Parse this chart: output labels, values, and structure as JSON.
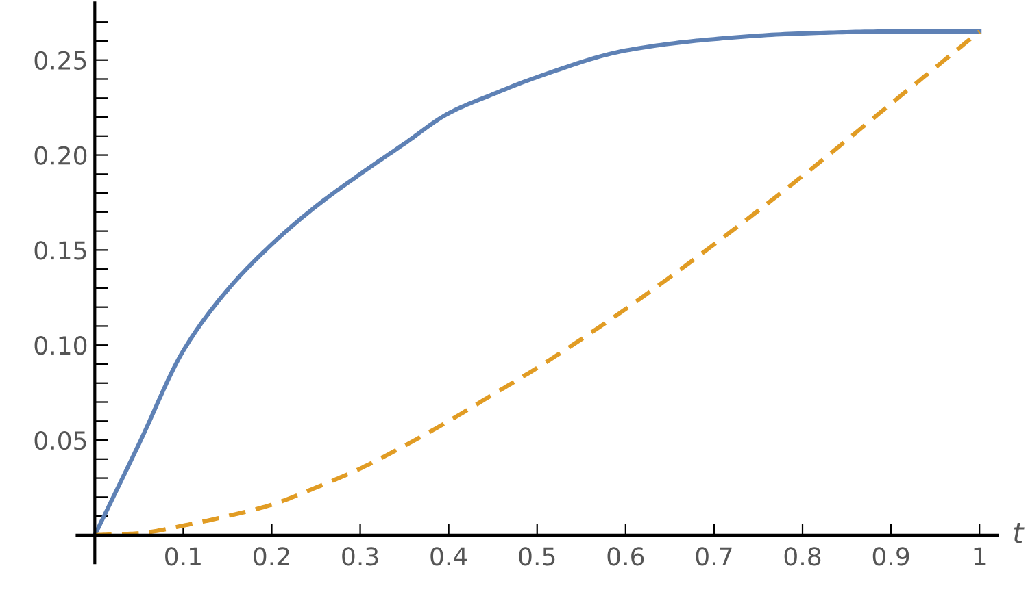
{
  "chart_data": {
    "type": "line",
    "xlabel": "t",
    "x": [
      0,
      0.05,
      0.1,
      0.15,
      0.2,
      0.25,
      0.3,
      0.35,
      0.4,
      0.45,
      0.5,
      0.6,
      0.7,
      0.8,
      0.9,
      1.0
    ],
    "series": [
      {
        "color": "#5e81b5",
        "line_style": "solid",
        "values": [
          0,
          0.048,
          0.097,
          0.129,
          0.153,
          0.173,
          0.19,
          0.206,
          0.222,
          0.232,
          0.241,
          0.255,
          0.261,
          0.264,
          0.265,
          0.265
        ]
      },
      {
        "color": "#e19c24",
        "line_style": "dashed",
        "values": [
          0,
          0.001,
          0.005,
          0.01,
          0.016,
          0.025,
          0.035,
          0.047,
          0.06,
          0.074,
          0.088,
          0.119,
          0.153,
          0.189,
          0.227,
          0.265
        ]
      }
    ],
    "xlim": [
      -0.02,
      1.02
    ],
    "ylim": [
      -0.0145,
      0.28
    ],
    "xticks": [
      0.1,
      0.2,
      0.3,
      0.4,
      0.5,
      0.6,
      0.7,
      0.8,
      0.9,
      1
    ],
    "yticks": [
      {
        "value": 0.05,
        "label": "0.05"
      },
      {
        "value": 0.1,
        "label": "0.10"
      },
      {
        "value": 0.15,
        "label": "0.15"
      },
      {
        "value": 0.2,
        "label": "0.20"
      },
      {
        "value": 0.25,
        "label": "0.25"
      },
      {
        "value": 0.01,
        "label": null
      },
      {
        "value": 0.02,
        "label": null
      },
      {
        "value": 0.03,
        "label": null
      },
      {
        "value": 0.04,
        "label": null
      },
      {
        "value": 0.06,
        "label": null
      },
      {
        "value": 0.07,
        "label": null
      },
      {
        "value": 0.08,
        "label": null
      },
      {
        "value": 0.09,
        "label": null
      },
      {
        "value": 0.11,
        "label": null
      },
      {
        "value": 0.12,
        "label": null
      },
      {
        "value": 0.13,
        "label": null
      },
      {
        "value": 0.14,
        "label": null
      },
      {
        "value": 0.16,
        "label": null
      },
      {
        "value": 0.17,
        "label": null
      },
      {
        "value": 0.18,
        "label": null
      },
      {
        "value": 0.19,
        "label": null
      },
      {
        "value": 0.21,
        "label": null
      },
      {
        "value": 0.22,
        "label": null
      },
      {
        "value": 0.23,
        "label": null
      },
      {
        "value": 0.24,
        "label": null
      },
      {
        "value": 0.26,
        "label": null
      },
      {
        "value": 0.27,
        "label": null
      }
    ],
    "grid": false
  }
}
